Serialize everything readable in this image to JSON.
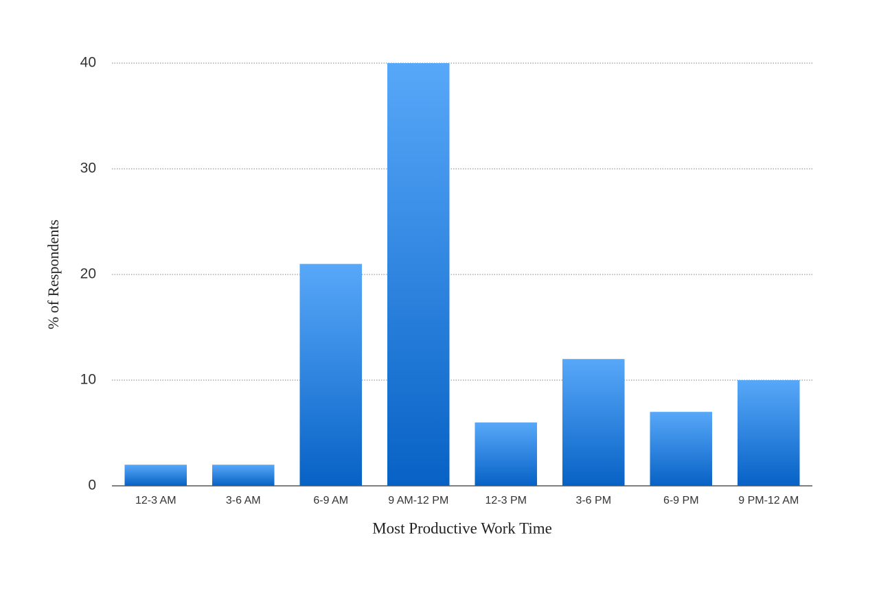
{
  "chart_data": {
    "type": "bar",
    "x_label": "Most Productive Work Time",
    "y_label": "% of Respondents",
    "categories": [
      "12-3 AM",
      "3-6 AM",
      "6-9 AM",
      "9 AM-12 PM",
      "12-3 PM",
      "3-6 PM",
      "6-9 PM",
      "9 PM-12 AM"
    ],
    "values": [
      2,
      2,
      21,
      40,
      6,
      12,
      7,
      10
    ],
    "color": {
      "top": "#58a8f9",
      "bottom": "#0762c5"
    },
    "ylim": [
      0,
      40
    ],
    "yticks": [
      0,
      10,
      20,
      30,
      40
    ],
    "grid": true
  }
}
